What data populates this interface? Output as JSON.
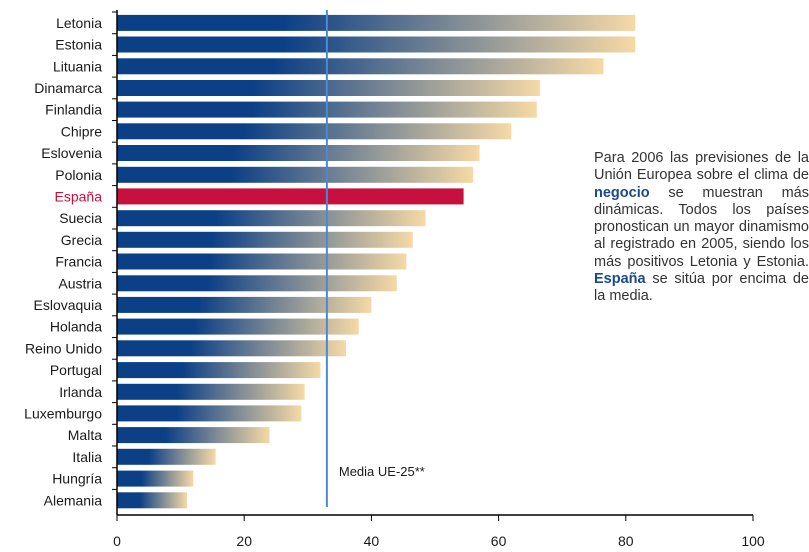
{
  "chart_data": {
    "type": "bar",
    "orientation": "horizontal",
    "categories": [
      "Letonia",
      "Estonia",
      "Lituania",
      "Dinamarca",
      "Finlandia",
      "Chipre",
      "Eslovenia",
      "Polonia",
      "España",
      "Suecia",
      "Grecia",
      "Francia",
      "Austria",
      "Eslovaquia",
      "Holanda",
      "Reino Unido",
      "Portugal",
      "Irlanda",
      "Luxemburgo",
      "Malta",
      "Italia",
      "Hungría",
      "Alemania"
    ],
    "values": [
      81.5,
      81.5,
      76.5,
      66.5,
      66,
      62,
      57,
      56,
      54.5,
      48.5,
      46.5,
      45.5,
      44,
      40,
      38,
      36,
      32,
      29.5,
      29,
      24,
      15.5,
      12,
      11
    ],
    "highlight_category": "España",
    "xlim": [
      0,
      100
    ],
    "xticks": [
      0,
      20,
      40,
      60,
      80,
      100
    ],
    "reference_line": {
      "value": 33,
      "label": "Media UE-25**"
    },
    "grid": false
  },
  "colors": {
    "bar_start": "#0b3f86",
    "bar_end": "#f6d9a5",
    "highlight": "#c8103e",
    "reference_line": "#4a8ad3",
    "axis": "#000000",
    "highlight_label": "#c8103e"
  },
  "note": {
    "text_1": "Para 2006 las previsiones de la Unión Europea sobre el clima de",
    "bold_1": "negocio",
    "text_2": "se muestran más dinámicas. Todos los países pronostican un mayor dinamismo al registrado en 2005, siendo los más positivos Letonia y Estonia.",
    "bold_2": "España",
    "text_3": "se sitúa por encima de la media."
  }
}
